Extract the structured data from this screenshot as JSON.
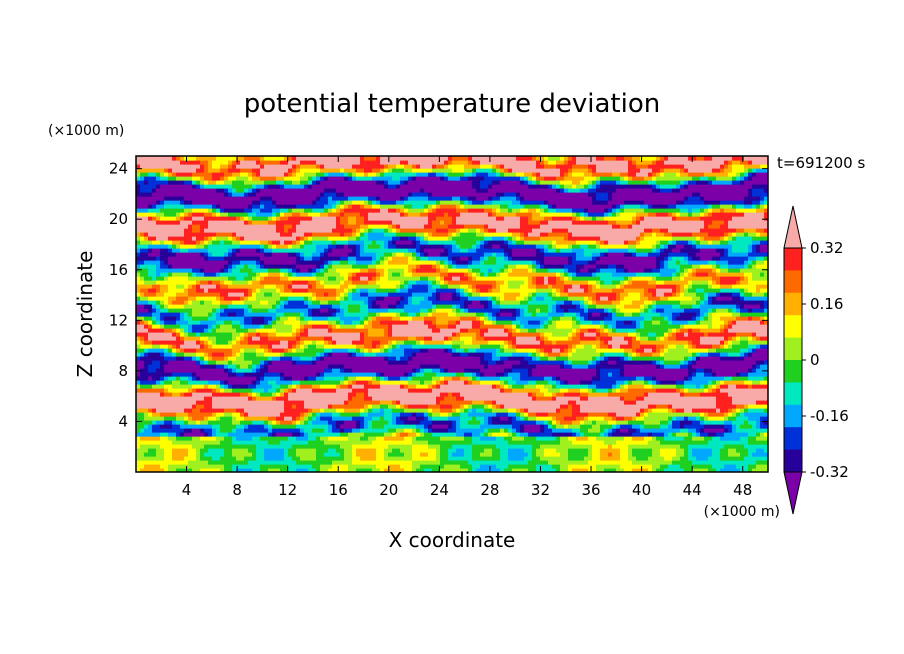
{
  "chart_data": {
    "type": "heatmap",
    "title": "potential temperature deviation",
    "xlabel": "X coordinate",
    "ylabel": "Z coordinate",
    "x_unit": "(×1000 m)",
    "y_unit": "(×1000 m)",
    "time_label": "t=691200 s",
    "xlim": [
      0,
      50
    ],
    "ylim": [
      0,
      25
    ],
    "x_ticks": [
      "4",
      "8",
      "12",
      "16",
      "20",
      "24",
      "28",
      "32",
      "36",
      "40",
      "44",
      "48"
    ],
    "y_ticks": [
      "4",
      "8",
      "12",
      "16",
      "20",
      "24"
    ],
    "colorbar": {
      "min": -0.4,
      "max": 0.4,
      "step": 0.08,
      "tick_labels": [
        "0.32",
        "0.16",
        "0",
        "-0.16",
        "-0.32"
      ],
      "tick_values": [
        0.32,
        0.16,
        0,
        -0.16,
        -0.32
      ],
      "colors": [
        "#7b00a8",
        "#28009a",
        "#0030d8",
        "#00a8ff",
        "#00e8c0",
        "#20d020",
        "#a0f020",
        "#ffff00",
        "#ffb000",
        "#ff6a00",
        "#ff2020",
        "#f7aaa8"
      ],
      "extend": "both"
    }
  }
}
